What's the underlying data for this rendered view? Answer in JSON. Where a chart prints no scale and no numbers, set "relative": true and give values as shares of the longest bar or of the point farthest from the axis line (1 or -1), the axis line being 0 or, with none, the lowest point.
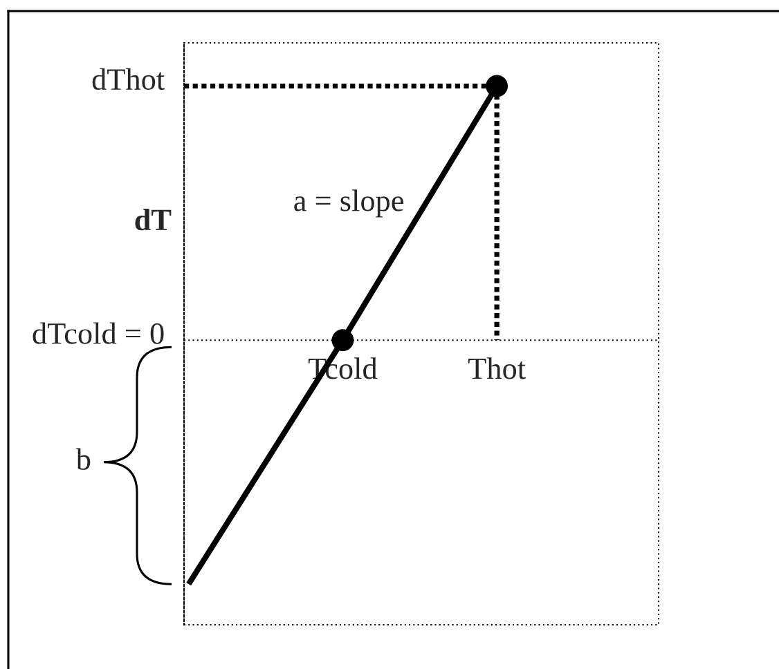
{
  "chart_data": {
    "type": "line",
    "relative": true,
    "ylabel": "dT",
    "tick_labels": "x",
    "categories": [
      null,
      "Tcold",
      "Thot"
    ],
    "series": [
      {
        "type": "line",
        "color": "#000000",
        "values": [
          -0.96,
          0,
          1
        ]
      },
      {
        "type": "scatter",
        "color": "#000000",
        "marker": "circle",
        "values": [
          null,
          0,
          1
        ]
      }
    ],
    "ref_lines": [
      {
        "axis": "y",
        "value": 1,
        "label": "dThot",
        "line_style": "dashed",
        "color": "#000000"
      },
      {
        "axis": "y",
        "value": 0,
        "label": "dTcold = 0",
        "line_style": "dotted",
        "color": "#000000"
      }
    ],
    "annotations": [
      "a = slope",
      "b"
    ]
  }
}
